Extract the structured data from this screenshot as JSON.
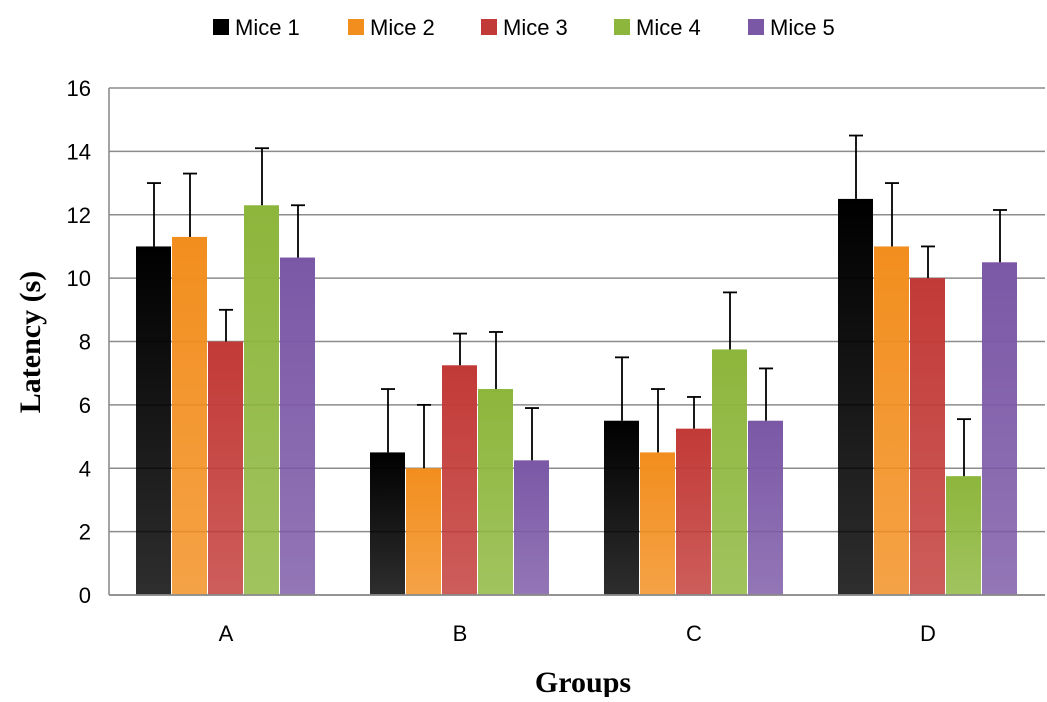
{
  "chart_data": {
    "type": "bar",
    "title": "",
    "xlabel": "Groups",
    "ylabel": "Latency (s)",
    "categories": [
      "A",
      "B",
      "C",
      "D"
    ],
    "ylim": [
      0,
      16
    ],
    "yticks": [
      0,
      2,
      4,
      6,
      8,
      10,
      12,
      14,
      16
    ],
    "grid": true,
    "legend_position": "top",
    "error_bars": "upper",
    "series": [
      {
        "name": "Mice 1",
        "color": "#000000",
        "values": [
          11.0,
          4.5,
          5.5,
          12.5
        ],
        "errors": [
          2.0,
          2.0,
          2.0,
          2.0
        ]
      },
      {
        "name": "Mice 2",
        "color": "#F28E1E",
        "values": [
          11.3,
          4.0,
          4.5,
          11.0
        ],
        "errors": [
          2.0,
          2.0,
          2.0,
          2.0
        ]
      },
      {
        "name": "Mice 3",
        "color": "#C23A37",
        "values": [
          8.0,
          7.25,
          5.25,
          10.0
        ],
        "errors": [
          1.0,
          1.0,
          1.0,
          1.0
        ]
      },
      {
        "name": "Mice 4",
        "color": "#8DB63C",
        "values": [
          12.3,
          6.5,
          7.75,
          3.75
        ],
        "errors": [
          1.8,
          1.8,
          1.8,
          1.8
        ]
      },
      {
        "name": "Mice 5",
        "color": "#7B58A6",
        "values": [
          10.65,
          4.25,
          5.5,
          10.5
        ],
        "errors": [
          1.65,
          1.65,
          1.65,
          1.65
        ]
      }
    ]
  }
}
